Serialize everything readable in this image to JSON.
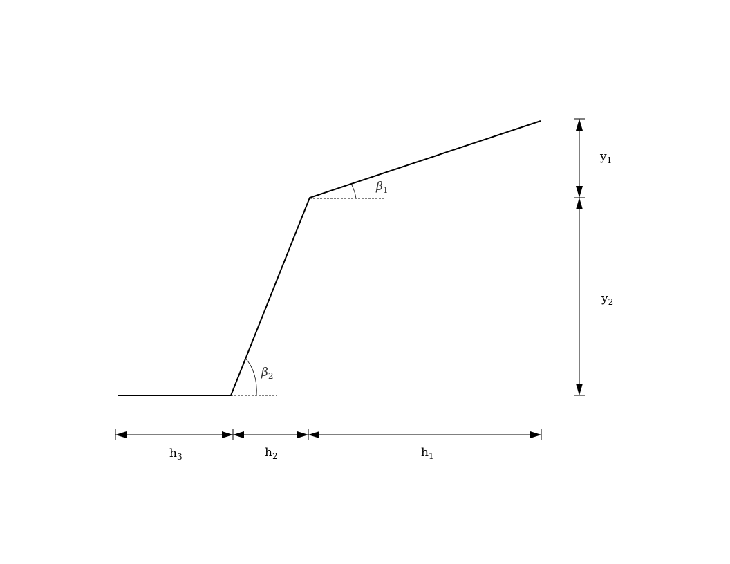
{
  "labels": {
    "h1": {
      "base": "h",
      "sub": "1"
    },
    "h2": {
      "base": "h",
      "sub": "2"
    },
    "h3": {
      "base": "h",
      "sub": "3"
    },
    "y1": {
      "base": "y",
      "sub": "1"
    },
    "y2": {
      "base": "y",
      "sub": "2"
    },
    "beta1": {
      "base": "β",
      "sub": "1"
    },
    "beta2": {
      "base": "β",
      "sub": "2"
    }
  }
}
